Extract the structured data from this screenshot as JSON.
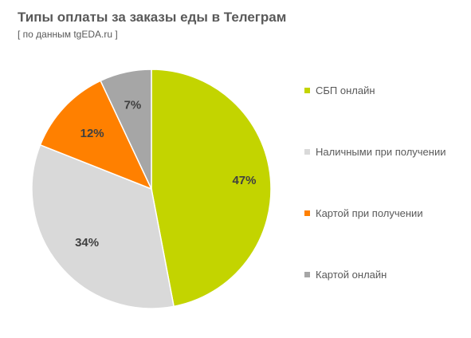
{
  "chart_data": {
    "type": "pie",
    "title": "Типы оплаты за заказы еды в Телеграм",
    "subtitle": "[ по данным tgEDA.ru ]",
    "categories": [
      "СБП онлайн",
      "Наличными при получении",
      "Картой при получении",
      "Картой онлайн"
    ],
    "values": [
      47,
      34,
      12,
      7
    ],
    "labels": [
      "47%",
      "34%",
      "12%",
      "7%"
    ],
    "colors": [
      "#c3d400",
      "#d9d9d9",
      "#ff8000",
      "#a6a6a6"
    ],
    "legend": "right"
  }
}
